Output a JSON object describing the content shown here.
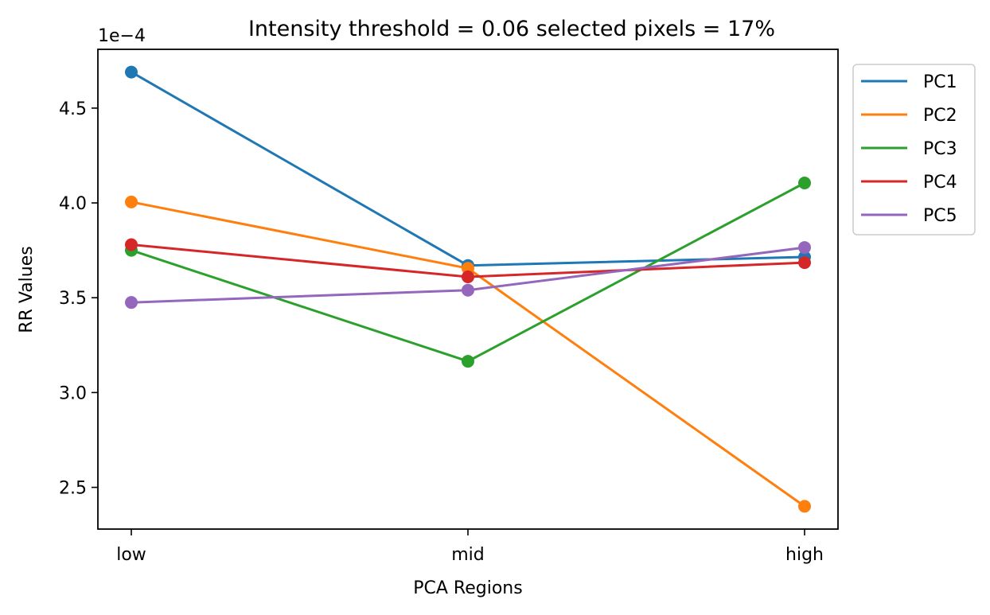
{
  "chart_data": {
    "type": "line",
    "title": "Intensity threshold = 0.06 selected pixels = 17%",
    "xlabel": "PCA Regions",
    "ylabel": "RR Values",
    "y_scale_factor_label": "1e−4",
    "y_scale_factor": 0.0001,
    "categories": [
      "low",
      "mid",
      "high"
    ],
    "ylim": [
      2.28,
      4.81
    ],
    "yticks": [
      2.5,
      3.0,
      3.5,
      4.0,
      4.5
    ],
    "ytick_labels": [
      "2.5",
      "3.0",
      "3.5",
      "4.0",
      "4.5"
    ],
    "markers": true,
    "grid": false,
    "legend_position": "outside-top-right",
    "series": [
      {
        "name": "PC1",
        "color": "#1f77b4",
        "values": [
          4.69,
          3.67,
          3.715
        ]
      },
      {
        "name": "PC2",
        "color": "#ff7f0e",
        "values": [
          4.005,
          3.655,
          2.4
        ]
      },
      {
        "name": "PC3",
        "color": "#2ca02c",
        "values": [
          3.75,
          3.165,
          4.105
        ]
      },
      {
        "name": "PC4",
        "color": "#d62728",
        "values": [
          3.78,
          3.61,
          3.685
        ]
      },
      {
        "name": "PC5",
        "color": "#9467bd",
        "values": [
          3.475,
          3.54,
          3.765
        ]
      }
    ]
  }
}
